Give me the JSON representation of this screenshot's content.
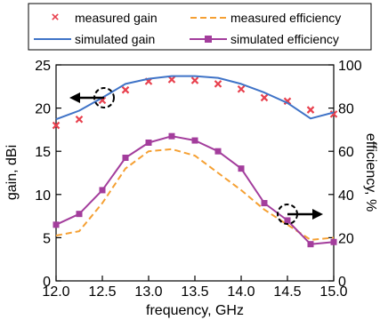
{
  "chart_data": {
    "type": "line",
    "title": "",
    "xlabel": "frequency, GHz",
    "ylabel_left": "gain, dBi",
    "ylabel_right": "efficiency, %",
    "xlim": [
      12.0,
      15.0
    ],
    "ylim_left": [
      0,
      25
    ],
    "ylim_right": [
      0,
      100
    ],
    "x_ticks": [
      "12.0",
      "12.5",
      "13.0",
      "13.5",
      "14.0",
      "14.5",
      "15.0"
    ],
    "y_left_ticks": [
      "0",
      "5",
      "10",
      "15",
      "20",
      "25"
    ],
    "y_right_ticks": [
      "0",
      "20",
      "40",
      "60",
      "80",
      "100"
    ],
    "grid": false,
    "legend_position": "top",
    "series": [
      {
        "name": "measured gain",
        "axis": "left",
        "style": "x-markers",
        "color": "#e8414e",
        "x": [
          12.0,
          12.25,
          12.5,
          12.75,
          13.0,
          13.25,
          13.5,
          13.75,
          14.0,
          14.25,
          14.5,
          14.75,
          15.0
        ],
        "y": [
          18.0,
          18.7,
          20.9,
          22.1,
          23.1,
          23.3,
          23.2,
          22.8,
          22.2,
          21.2,
          20.8,
          19.8,
          19.3
        ]
      },
      {
        "name": "measured efficiency",
        "axis": "right",
        "style": "dashed",
        "color": "#f5a033",
        "x": [
          12.0,
          12.25,
          12.5,
          12.75,
          13.0,
          13.25,
          13.5,
          13.75,
          14.0,
          14.25,
          14.5,
          14.75,
          15.0
        ],
        "y": [
          21,
          23,
          36,
          52,
          60,
          61,
          58,
          50,
          42,
          33,
          26,
          19,
          20
        ]
      },
      {
        "name": "simulated gain",
        "axis": "left",
        "style": "solid",
        "color": "#3f73c7",
        "x": [
          12.0,
          12.25,
          12.5,
          12.75,
          13.0,
          13.25,
          13.5,
          13.75,
          14.0,
          14.25,
          14.5,
          14.75,
          15.0
        ],
        "y": [
          18.7,
          19.7,
          21.2,
          22.8,
          23.4,
          23.7,
          23.7,
          23.5,
          22.8,
          21.8,
          20.6,
          18.8,
          19.5
        ]
      },
      {
        "name": "simulated efficiency",
        "axis": "right",
        "style": "solid-square-markers",
        "color": "#a33d9c",
        "x": [
          12.0,
          12.25,
          12.5,
          12.75,
          13.0,
          13.25,
          13.5,
          13.75,
          14.0,
          14.25,
          14.5,
          14.75,
          15.0
        ],
        "y": [
          26,
          31,
          42,
          57,
          64,
          67,
          65,
          60,
          52,
          36,
          28,
          17,
          18
        ]
      }
    ]
  }
}
